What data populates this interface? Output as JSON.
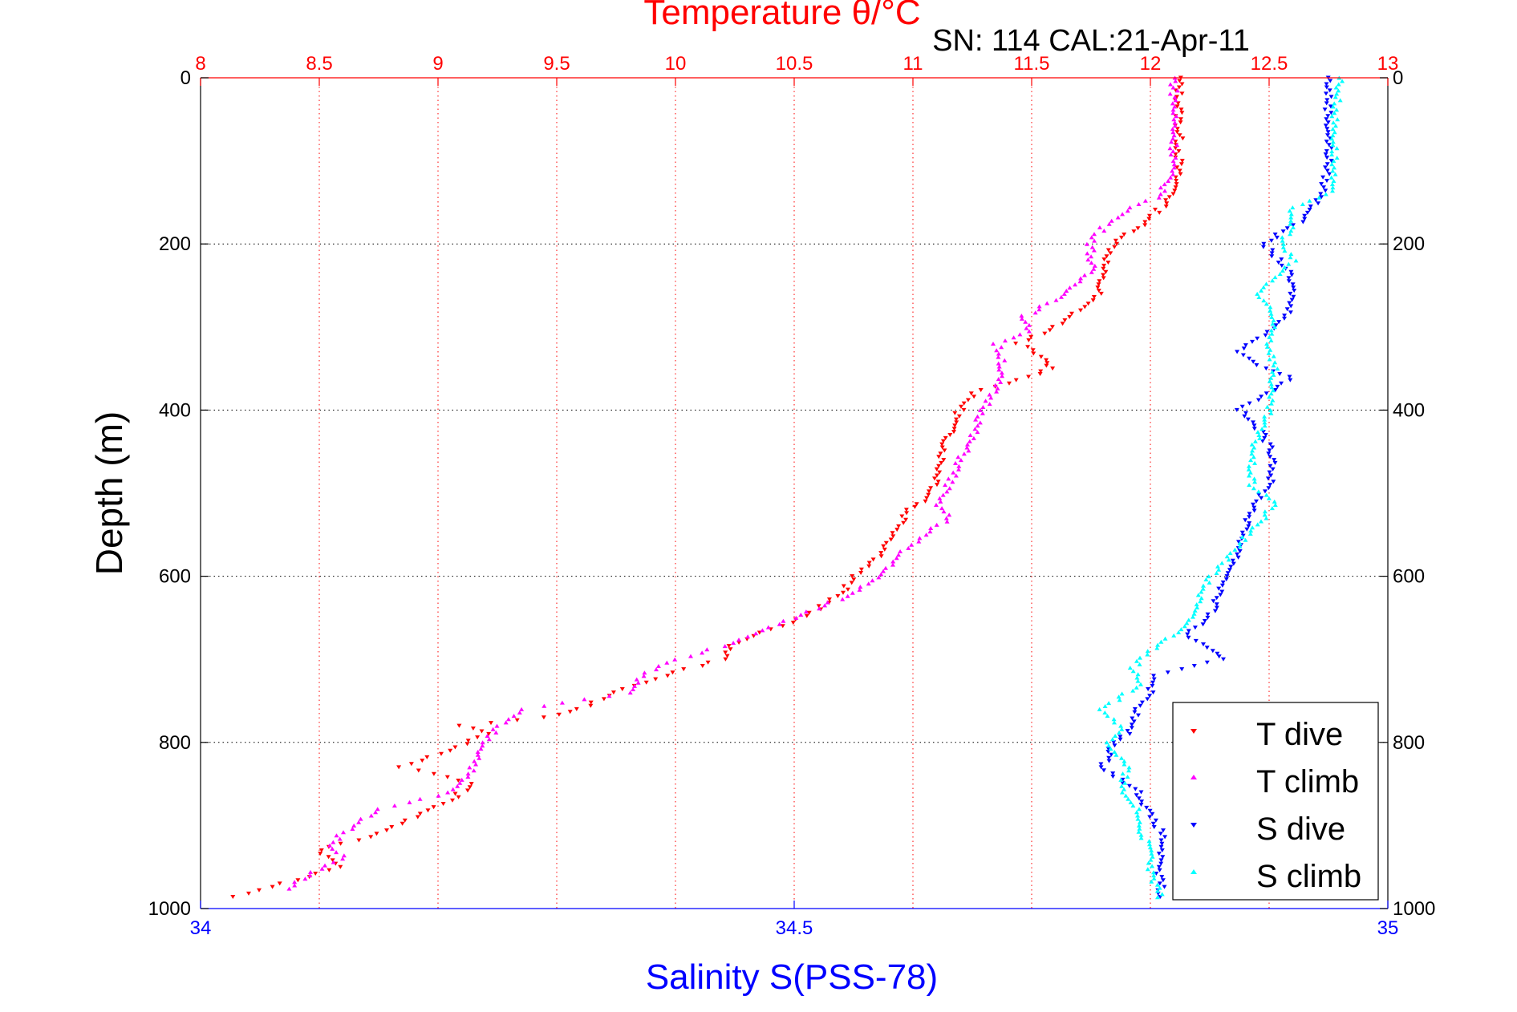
{
  "chart_data": {
    "type": "scatter",
    "title_top": "Temperature θ/°C",
    "subtitle": "SN: 114  CAL:21-Apr-11",
    "ylabel": "Depth (m)",
    "xlabel_bottom": "Salinity S(PSS-78)",
    "ylim": [
      0,
      1000
    ],
    "y_reversed": true,
    "temperature_axis": {
      "range": [
        8,
        13
      ],
      "ticks": [
        "8",
        "8.5",
        "9",
        "9.5",
        "10",
        "10.5",
        "11",
        "11.5",
        "12",
        "12.5",
        "13"
      ],
      "grid": true,
      "grid_color": "#ff0000"
    },
    "salinity_axis": {
      "range": [
        34,
        35
      ],
      "ticks": [
        "34",
        "34.5",
        "35"
      ],
      "grid": false
    },
    "depth_axis": {
      "ticks": [
        "0",
        "200",
        "400",
        "600",
        "800",
        "1000"
      ],
      "grid": true
    },
    "legend_position": "lower-right",
    "colors": {
      "temperature_axis": "#ff0000",
      "salinity_axis": "#0000ff",
      "depth_axis": "#000000"
    },
    "series": [
      {
        "name": "T dive",
        "axis": "temperature",
        "marker": "triangle-down",
        "color": "#ff0000",
        "points": [
          [
            0,
            12.12
          ],
          [
            50,
            12.12
          ],
          [
            100,
            12.12
          ],
          [
            140,
            12.1
          ],
          [
            170,
            12.0
          ],
          [
            200,
            11.85
          ],
          [
            230,
            11.8
          ],
          [
            260,
            11.78
          ],
          [
            280,
            11.7
          ],
          [
            300,
            11.6
          ],
          [
            320,
            11.45
          ],
          [
            340,
            11.55
          ],
          [
            350,
            11.58
          ],
          [
            360,
            11.5
          ],
          [
            380,
            11.25
          ],
          [
            400,
            11.2
          ],
          [
            430,
            11.15
          ],
          [
            460,
            11.12
          ],
          [
            490,
            11.1
          ],
          [
            510,
            11.05
          ],
          [
            520,
            10.98
          ],
          [
            540,
            10.95
          ],
          [
            560,
            10.9
          ],
          [
            580,
            10.85
          ],
          [
            600,
            10.75
          ],
          [
            620,
            10.7
          ],
          [
            640,
            10.6
          ],
          [
            660,
            10.45
          ],
          [
            680,
            10.25
          ],
          [
            700,
            10.2
          ],
          [
            720,
            9.95
          ],
          [
            740,
            9.75
          ],
          [
            760,
            9.6
          ],
          [
            770,
            9.45
          ],
          [
            780,
            9.1
          ],
          [
            790,
            9.2
          ],
          [
            810,
            9.05
          ],
          [
            830,
            8.85
          ],
          [
            850,
            9.15
          ],
          [
            870,
            9.05
          ],
          [
            890,
            8.9
          ],
          [
            910,
            8.75
          ],
          [
            930,
            8.5
          ],
          [
            950,
            8.6
          ],
          [
            970,
            8.35
          ],
          [
            990,
            8.1
          ]
        ]
      },
      {
        "name": "T climb",
        "axis": "temperature",
        "marker": "triangle-up",
        "color": "#ff00ff",
        "points": [
          [
            0,
            12.1
          ],
          [
            50,
            12.1
          ],
          [
            100,
            12.1
          ],
          [
            140,
            12.05
          ],
          [
            160,
            11.9
          ],
          [
            180,
            11.8
          ],
          [
            200,
            11.75
          ],
          [
            230,
            11.75
          ],
          [
            260,
            11.65
          ],
          [
            275,
            11.55
          ],
          [
            290,
            11.45
          ],
          [
            305,
            11.5
          ],
          [
            320,
            11.35
          ],
          [
            340,
            11.38
          ],
          [
            370,
            11.35
          ],
          [
            400,
            11.3
          ],
          [
            430,
            11.25
          ],
          [
            460,
            11.2
          ],
          [
            490,
            11.15
          ],
          [
            510,
            11.1
          ],
          [
            530,
            11.15
          ],
          [
            550,
            11.05
          ],
          [
            570,
            10.95
          ],
          [
            590,
            10.9
          ],
          [
            620,
            10.75
          ],
          [
            650,
            10.5
          ],
          [
            680,
            10.25
          ],
          [
            700,
            10.0
          ],
          [
            720,
            9.85
          ],
          [
            740,
            9.8
          ],
          [
            760,
            9.35
          ],
          [
            780,
            9.25
          ],
          [
            800,
            9.2
          ],
          [
            830,
            9.15
          ],
          [
            860,
            9.05
          ],
          [
            880,
            8.75
          ],
          [
            900,
            8.65
          ],
          [
            920,
            8.55
          ],
          [
            940,
            8.6
          ],
          [
            960,
            8.45
          ],
          [
            980,
            8.35
          ]
        ]
      },
      {
        "name": "S dive",
        "axis": "salinity",
        "marker": "triangle-down",
        "color": "#0000ff",
        "points": [
          [
            0,
            34.95
          ],
          [
            50,
            34.95
          ],
          [
            100,
            34.95
          ],
          [
            140,
            34.945
          ],
          [
            170,
            34.93
          ],
          [
            200,
            34.895
          ],
          [
            230,
            34.915
          ],
          [
            260,
            34.92
          ],
          [
            290,
            34.915
          ],
          [
            310,
            34.895
          ],
          [
            330,
            34.875
          ],
          [
            350,
            34.895
          ],
          [
            360,
            34.92
          ],
          [
            380,
            34.9
          ],
          [
            400,
            34.875
          ],
          [
            430,
            34.895
          ],
          [
            460,
            34.905
          ],
          [
            490,
            34.9
          ],
          [
            510,
            34.89
          ],
          [
            540,
            34.88
          ],
          [
            570,
            34.875
          ],
          [
            600,
            34.865
          ],
          [
            630,
            34.855
          ],
          [
            650,
            34.85
          ],
          [
            670,
            34.83
          ],
          [
            690,
            34.85
          ],
          [
            700,
            34.86
          ],
          [
            720,
            34.805
          ],
          [
            740,
            34.8
          ],
          [
            760,
            34.79
          ],
          [
            790,
            34.78
          ],
          [
            800,
            34.77
          ],
          [
            830,
            34.76
          ],
          [
            860,
            34.79
          ],
          [
            890,
            34.8
          ],
          [
            910,
            34.81
          ],
          [
            930,
            34.81
          ],
          [
            950,
            34.805
          ],
          [
            970,
            34.81
          ],
          [
            990,
            34.805
          ]
        ]
      },
      {
        "name": "S climb",
        "axis": "salinity",
        "marker": "triangle-up",
        "color": "#00ffff",
        "points": [
          [
            0,
            34.96
          ],
          [
            50,
            34.955
          ],
          [
            100,
            34.955
          ],
          [
            140,
            34.95
          ],
          [
            160,
            34.915
          ],
          [
            180,
            34.92
          ],
          [
            200,
            34.91
          ],
          [
            220,
            34.92
          ],
          [
            240,
            34.905
          ],
          [
            260,
            34.89
          ],
          [
            280,
            34.9
          ],
          [
            300,
            34.905
          ],
          [
            320,
            34.9
          ],
          [
            350,
            34.905
          ],
          [
            380,
            34.9
          ],
          [
            400,
            34.9
          ],
          [
            430,
            34.89
          ],
          [
            460,
            34.885
          ],
          [
            490,
            34.885
          ],
          [
            510,
            34.905
          ],
          [
            530,
            34.895
          ],
          [
            560,
            34.875
          ],
          [
            580,
            34.865
          ],
          [
            600,
            34.85
          ],
          [
            630,
            34.84
          ],
          [
            660,
            34.83
          ],
          [
            690,
            34.8
          ],
          [
            710,
            34.785
          ],
          [
            730,
            34.79
          ],
          [
            760,
            34.76
          ],
          [
            780,
            34.775
          ],
          [
            800,
            34.765
          ],
          [
            830,
            34.78
          ],
          [
            860,
            34.775
          ],
          [
            880,
            34.79
          ],
          [
            900,
            34.79
          ],
          [
            930,
            34.8
          ],
          [
            960,
            34.8
          ],
          [
            990,
            34.81
          ]
        ]
      }
    ]
  }
}
